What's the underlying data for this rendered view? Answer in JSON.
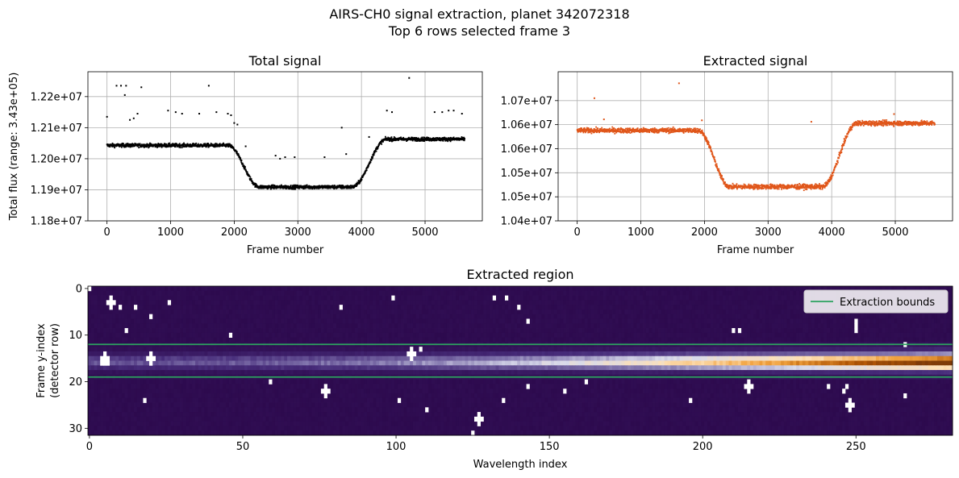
{
  "figure": {
    "title_line1": "AIRS-CH0 signal extraction, planet 342072318",
    "title_line2": "Top 6 rows selected frame 3"
  },
  "chart_data": [
    {
      "type": "scatter",
      "title": "Total signal",
      "xlabel": "Frame number",
      "ylabel": "Total flux (range: 3.43e+05)",
      "xlim": [
        -300,
        5900
      ],
      "ylim": [
        11800000,
        12280000
      ],
      "xticks": [
        0,
        1000,
        2000,
        3000,
        4000,
        5000
      ],
      "yticks": [
        11800000,
        11900000,
        12000000,
        12100000,
        12200000
      ],
      "ytick_labels": [
        "1.18e+07",
        "1.19e+07",
        "1.20e+07",
        "1.21e+07",
        "1.22e+07"
      ],
      "grid": true,
      "color": "#000000",
      "frames": 5625,
      "baseline": 12043000,
      "transit_depth": 134000,
      "ingress": [
        1900,
        2400
      ],
      "egress": [
        3850,
        4400
      ],
      "post_transit_offset": 20000,
      "noise": 4000,
      "outliers": [
        [
          0,
          12135000
        ],
        [
          150,
          12235000
        ],
        [
          220,
          12235000
        ],
        [
          280,
          12205000
        ],
        [
          300,
          12235000
        ],
        [
          360,
          12125000
        ],
        [
          420,
          12130000
        ],
        [
          480,
          12145000
        ],
        [
          540,
          12230000
        ],
        [
          960,
          12155000
        ],
        [
          1080,
          12150000
        ],
        [
          1180,
          12145000
        ],
        [
          1450,
          12145000
        ],
        [
          1600,
          12235000
        ],
        [
          1720,
          12150000
        ],
        [
          1900,
          12145000
        ],
        [
          1950,
          12140000
        ],
        [
          2000,
          12115000
        ],
        [
          2050,
          12110000
        ],
        [
          2180,
          12040000
        ],
        [
          2650,
          12010000
        ],
        [
          2720,
          12000000
        ],
        [
          2800,
          12005000
        ],
        [
          2950,
          12005000
        ],
        [
          3420,
          12005000
        ],
        [
          3690,
          12100000
        ],
        [
          3760,
          12015000
        ],
        [
          4120,
          12070000
        ],
        [
          4400,
          12155000
        ],
        [
          4480,
          12150000
        ],
        [
          4750,
          12260000
        ],
        [
          5150,
          12150000
        ],
        [
          5270,
          12150000
        ],
        [
          5370,
          12155000
        ],
        [
          5450,
          12155000
        ],
        [
          5580,
          12145000
        ]
      ]
    },
    {
      "type": "scatter",
      "title": "Extracted signal",
      "xlabel": "Frame number",
      "ylabel": "",
      "xlim": [
        -300,
        5900
      ],
      "ylim": [
        10400000,
        10710000
      ],
      "xticks": [
        0,
        1000,
        2000,
        3000,
        4000,
        5000
      ],
      "yticks": [
        10400000,
        10450000,
        10500000,
        10550000,
        10600000,
        10650000
      ],
      "ytick_labels": [
        "1.04e+07",
        "1.05e+07",
        "1.05e+07",
        "1.06e+07",
        "1.06e+07",
        "1.07e+07"
      ],
      "grid": true,
      "color": "#e0561a",
      "frames": 5625,
      "baseline": 10588000,
      "transit_depth": 117000,
      "ingress": [
        1900,
        2400
      ],
      "egress": [
        3850,
        4400
      ],
      "post_transit_offset": 15000,
      "noise": 3500,
      "outliers": [
        [
          270,
          10655000
        ],
        [
          420,
          10611000
        ],
        [
          1600,
          10686000
        ],
        [
          1960,
          10609000
        ],
        [
          3680,
          10606000
        ],
        [
          4980,
          10622000
        ]
      ]
    },
    {
      "type": "heatmap",
      "title": "Extracted region",
      "xlabel": "Wavelength index",
      "ylabel": "Frame y-index",
      "ylabel2": "(detector row)",
      "xlim": [
        -0.5,
        281.5
      ],
      "ylim": [
        31.5,
        -0.5
      ],
      "xticks": [
        0,
        50,
        100,
        150,
        200,
        250
      ],
      "yticks": [
        0,
        10,
        20,
        30
      ],
      "cols": 282,
      "rows": 32,
      "colormap": [
        "#2d0a4e",
        "#472c7a",
        "#8073ac",
        "#d8daeb",
        "#fee0b6",
        "#f1a340",
        "#b35806",
        "#7f3b08"
      ],
      "extraction_bounds": [
        12,
        19
      ],
      "bound_color": "#2ca25f",
      "legend": {
        "label": "Extraction bounds",
        "position": "top-right"
      },
      "hot_pixels": [
        [
          0,
          0
        ],
        [
          7,
          2
        ],
        [
          7,
          3
        ],
        [
          6,
          3
        ],
        [
          8,
          3
        ],
        [
          7,
          4
        ],
        [
          10,
          4
        ],
        [
          15,
          4
        ],
        [
          26,
          3
        ],
        [
          20,
          6
        ],
        [
          12,
          9
        ],
        [
          46,
          10
        ],
        [
          82,
          4
        ],
        [
          99,
          2
        ],
        [
          132,
          2
        ],
        [
          136,
          2
        ],
        [
          140,
          4
        ],
        [
          143,
          7
        ],
        [
          210,
          9
        ],
        [
          212,
          9
        ],
        [
          250,
          7
        ],
        [
          250,
          8
        ],
        [
          250,
          9
        ],
        [
          266,
          12
        ],
        [
          4,
          15
        ],
        [
          5,
          15
        ],
        [
          6,
          15
        ],
        [
          4,
          16
        ],
        [
          5,
          16
        ],
        [
          6,
          16
        ],
        [
          5,
          14
        ],
        [
          20,
          14
        ],
        [
          19,
          15
        ],
        [
          20,
          15
        ],
        [
          21,
          15
        ],
        [
          20,
          16
        ],
        [
          105,
          13
        ],
        [
          104,
          14
        ],
        [
          105,
          14
        ],
        [
          106,
          14
        ],
        [
          105,
          15
        ],
        [
          108,
          13
        ],
        [
          59,
          20
        ],
        [
          77,
          21
        ],
        [
          76,
          22
        ],
        [
          77,
          22
        ],
        [
          78,
          22
        ],
        [
          77,
          23
        ],
        [
          18,
          24
        ],
        [
          101,
          24
        ],
        [
          110,
          26
        ],
        [
          127,
          27
        ],
        [
          126,
          28
        ],
        [
          127,
          28
        ],
        [
          128,
          28
        ],
        [
          127,
          29
        ],
        [
          125,
          31
        ],
        [
          135,
          24
        ],
        [
          143,
          21
        ],
        [
          155,
          22
        ],
        [
          162,
          20
        ],
        [
          196,
          24
        ],
        [
          215,
          20
        ],
        [
          214,
          21
        ],
        [
          215,
          21
        ],
        [
          216,
          21
        ],
        [
          215,
          22
        ],
        [
          241,
          21
        ],
        [
          246,
          22
        ],
        [
          247,
          21
        ],
        [
          248,
          24
        ],
        [
          247,
          25
        ],
        [
          248,
          25
        ],
        [
          249,
          25
        ],
        [
          248,
          26
        ],
        [
          266,
          23
        ]
      ]
    }
  ]
}
